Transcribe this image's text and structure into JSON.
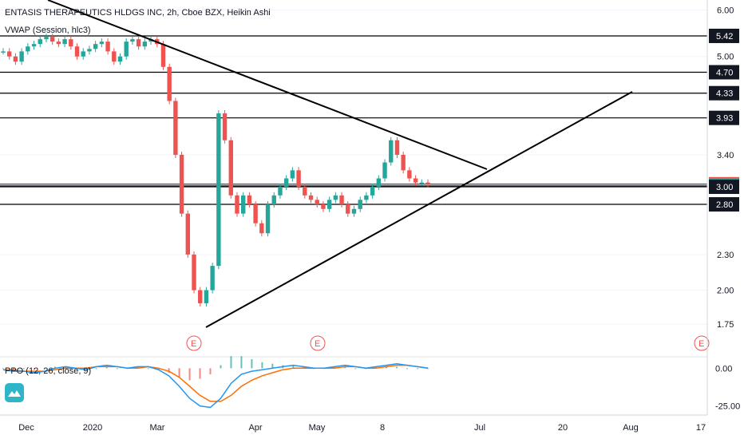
{
  "header": {
    "title": "ENTASIS THERAPEUTICS HLDGS INC, 2h, Cboe BZX, Heikin Ashi",
    "indicator": "VWAP (Session, hlc3)",
    "ppo_label": "PPO (12, 26, close, 9)"
  },
  "colors": {
    "up": "#26a69a",
    "down": "#ef5350",
    "ppo_line": "#2196f3",
    "signal_line": "#ff6d00",
    "lines": "#000000",
    "logo": "#2fb5c8"
  },
  "logo_icon": "tradingview-logo-icon",
  "chart_data": {
    "type": "candlestick",
    "title": "ENTASIS THERAPEUTICS HLDGS INC, 2h, Cboe BZX, Heikin Ashi",
    "y_scale": "log",
    "ylim": [
      1.55,
      6.2
    ],
    "y_ticks": [
      "6.00",
      "5.00",
      "3.40",
      "2.30",
      "2.00",
      "1.75"
    ],
    "x_ticks": [
      "Dec",
      "2020",
      "Mar",
      "Apr",
      "May",
      "8",
      "Jul",
      "20",
      "Aug",
      "17"
    ],
    "candles_close": [
      5.1,
      5.0,
      4.9,
      5.1,
      5.2,
      5.25,
      5.35,
      5.4,
      5.3,
      5.25,
      5.35,
      5.2,
      5.0,
      5.1,
      5.15,
      5.25,
      5.3,
      5.1,
      4.9,
      5.0,
      5.3,
      5.35,
      5.2,
      5.3,
      5.35,
      5.25,
      4.8,
      4.2,
      3.4,
      2.7,
      2.3,
      2.0,
      1.9,
      2.0,
      2.2,
      4.0,
      3.6,
      2.9,
      2.7,
      2.9,
      2.8,
      2.6,
      2.5,
      2.8,
      2.9,
      3.0,
      3.1,
      3.2,
      3.0,
      2.9,
      2.85,
      2.8,
      2.75,
      2.85,
      2.9,
      2.8,
      2.7,
      2.75,
      2.85,
      2.9,
      3.0,
      3.1,
      3.3,
      3.6,
      3.4,
      3.2,
      3.1,
      3.05,
      3.05,
      3.03
    ],
    "horizontal_levels": [
      {
        "label": "5.42",
        "value": 5.42,
        "style": "dark"
      },
      {
        "label": "4.70",
        "value": 4.7,
        "style": "dark"
      },
      {
        "label": "4.33",
        "value": 4.33,
        "style": "dark"
      },
      {
        "label": "3.93",
        "value": 3.93,
        "style": "dark"
      },
      {
        "label": "3.03",
        "value": 3.03,
        "style": "red"
      },
      {
        "label": "3.01",
        "value": 3.01,
        "style": "teal"
      },
      {
        "label": "3.00",
        "value": 3.0,
        "style": "dark"
      },
      {
        "label": "2.80",
        "value": 2.8,
        "style": "dark"
      }
    ],
    "earnings_markers": [
      "E",
      "E",
      "E"
    ],
    "ppo": {
      "ticks": [
        "0.00",
        "-25.00"
      ],
      "ylim": [
        -30,
        6
      ],
      "ppo_line": [
        -1,
        -2,
        -2,
        -3,
        -2,
        0,
        1,
        0,
        -1,
        1,
        2,
        1,
        0,
        1,
        1,
        -1,
        -5,
        -12,
        -20,
        -25,
        -26,
        -20,
        -10,
        -4,
        -2,
        -1,
        0,
        1,
        2,
        1,
        0,
        0,
        1,
        2,
        1,
        0,
        1,
        2,
        3,
        2,
        1,
        0
      ],
      "signal_line": [
        -1,
        -1,
        -2,
        -2,
        -2,
        -1,
        0,
        0,
        0,
        1,
        1,
        1,
        0,
        0,
        1,
        0,
        -2,
        -6,
        -12,
        -18,
        -22,
        -22,
        -18,
        -12,
        -8,
        -5,
        -3,
        -1,
        0,
        0,
        0,
        0,
        0,
        1,
        1,
        0,
        0,
        1,
        2,
        2,
        1,
        0
      ]
    }
  }
}
